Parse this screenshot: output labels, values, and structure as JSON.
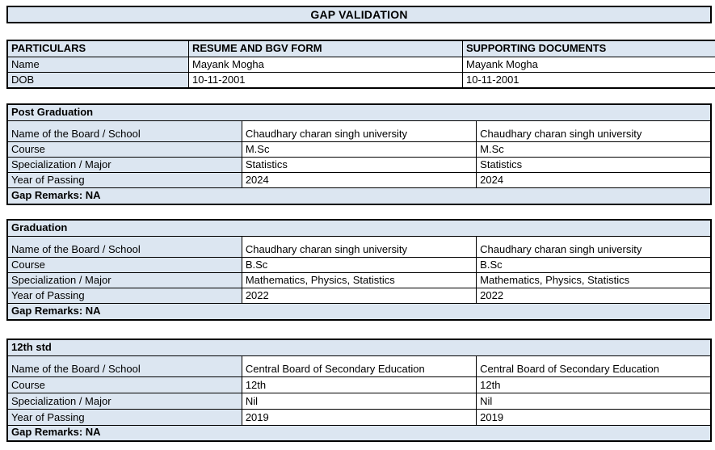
{
  "title": "GAP VALIDATION",
  "colors": {
    "header_bg": "#dce6f1",
    "border": "#000000",
    "page_bg": "#ffffff",
    "text": "#000000"
  },
  "particulars_table": {
    "headers": [
      "PARTICULARS",
      "RESUME AND BGV FORM",
      "SUPPORTING DOCUMENTS"
    ],
    "rows": [
      {
        "label": "Name",
        "resume": "Mayank Mogha",
        "supporting": "Mayank Mogha"
      },
      {
        "label": "DOB",
        "resume": "10-11-2001",
        "supporting": "10-11-2001"
      }
    ]
  },
  "sections": [
    {
      "title": "Post Graduation",
      "rows": [
        {
          "label": "Name of the Board / School",
          "resume": "Chaudhary charan singh university",
          "supporting": "Chaudhary charan singh university"
        },
        {
          "label": "Course",
          "resume": "M.Sc",
          "supporting": "M.Sc"
        },
        {
          "label": "Specialization / Major",
          "resume": "Statistics",
          "supporting": "Statistics"
        },
        {
          "label": "Year of Passing",
          "resume": "2024",
          "supporting": "2024"
        }
      ],
      "gap_remarks": "Gap Remarks: NA"
    },
    {
      "title": "Graduation",
      "rows": [
        {
          "label": "Name of the Board / School",
          "resume": "Chaudhary charan singh university",
          "supporting": "Chaudhary charan singh university"
        },
        {
          "label": "Course",
          "resume": "B.Sc",
          "supporting": "B.Sc"
        },
        {
          "label": "Specialization / Major",
          "resume": "Mathematics, Physics, Statistics",
          "supporting": "Mathematics, Physics, Statistics"
        },
        {
          "label": "Year of Passing",
          "resume": "2022",
          "supporting": "2022"
        }
      ],
      "gap_remarks": "Gap Remarks: NA"
    },
    {
      "title": "12th std",
      "rows": [
        {
          "label": "Name of the Board / School",
          "resume": "Central Board of Secondary Education",
          "supporting": "Central Board of Secondary Education"
        },
        {
          "label": "Course",
          "resume": "12th",
          "supporting": "12th"
        },
        {
          "label": "Specialization / Major",
          "resume": "Nil",
          "supporting": "Nil"
        },
        {
          "label": "Year of Passing",
          "resume": "2019",
          "supporting": "2019"
        }
      ],
      "gap_remarks": "Gap Remarks: NA"
    }
  ]
}
